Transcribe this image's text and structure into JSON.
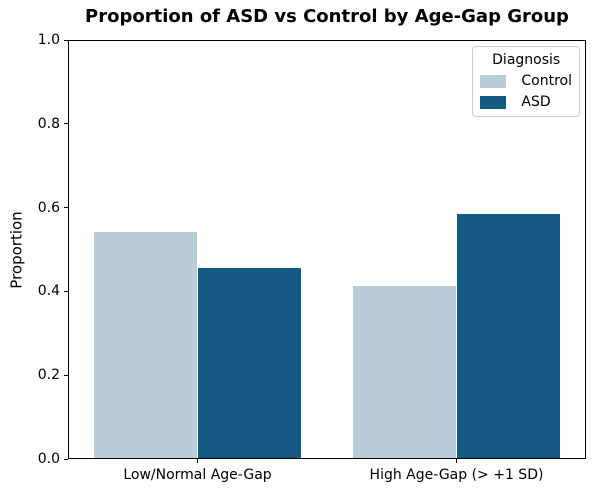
{
  "chart_data": {
    "type": "bar",
    "title": "Proportion of ASD vs Control by Age-Gap Group",
    "xlabel": "",
    "ylabel": "Proportion",
    "ylim": [
      0.0,
      1.0
    ],
    "yticks": [
      "0.0",
      "0.2",
      "0.4",
      "0.6",
      "0.8",
      "1.0"
    ],
    "categories": [
      "Low/Normal Age-Gap",
      "High Age-Gap (> +1 SD)"
    ],
    "series": [
      {
        "name": "Control",
        "color": "#b9cdd9",
        "values": [
          0.543,
          0.414
        ]
      },
      {
        "name": "ASD",
        "color": "#155a82",
        "values": [
          0.457,
          0.586
        ]
      }
    ],
    "legend": {
      "title": "Diagnosis",
      "position": "upper right"
    },
    "grid": false
  }
}
